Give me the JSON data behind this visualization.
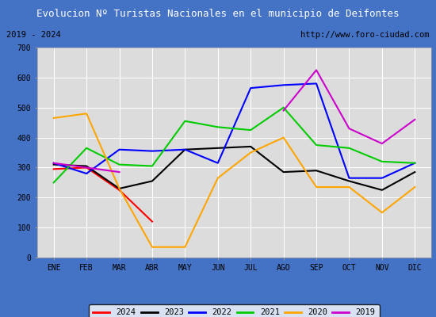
{
  "title": "Evolucion Nº Turistas Nacionales en el municipio de Deifontes",
  "subtitle_left": "2019 - 2024",
  "subtitle_right": "http://www.foro-ciudad.com",
  "months": [
    "ENE",
    "FEB",
    "MAR",
    "ABR",
    "MAY",
    "JUN",
    "JUL",
    "AGO",
    "SEP",
    "OCT",
    "NOV",
    "DIC"
  ],
  "series": {
    "2024": [
      295,
      300,
      225,
      120,
      null,
      null,
      null,
      null,
      null,
      null,
      null,
      null
    ],
    "2023": [
      310,
      305,
      230,
      255,
      360,
      365,
      370,
      285,
      290,
      255,
      225,
      285
    ],
    "2022": [
      315,
      280,
      360,
      355,
      360,
      315,
      565,
      575,
      580,
      265,
      265,
      315
    ],
    "2021": [
      250,
      365,
      310,
      305,
      455,
      435,
      425,
      500,
      375,
      365,
      320,
      315
    ],
    "2020": [
      465,
      480,
      230,
      35,
      35,
      265,
      350,
      400,
      235,
      235,
      150,
      235
    ],
    "2019": [
      315,
      300,
      285,
      null,
      null,
      null,
      null,
      490,
      625,
      430,
      380,
      460
    ]
  },
  "colors": {
    "2024": "#ff0000",
    "2023": "#000000",
    "2022": "#0000ff",
    "2021": "#00cc00",
    "2020": "#ffa500",
    "2019": "#cc00cc"
  },
  "ylim": [
    0,
    700
  ],
  "yticks": [
    0,
    100,
    200,
    300,
    400,
    500,
    600,
    700
  ],
  "title_bg_color": "#4472c4",
  "title_text_color": "#ffffff",
  "plot_bg_color": "#dcdcdc",
  "grid_color": "#ffffff",
  "border_color": "#4472c4",
  "subtitle_box_color": "#ffffff"
}
